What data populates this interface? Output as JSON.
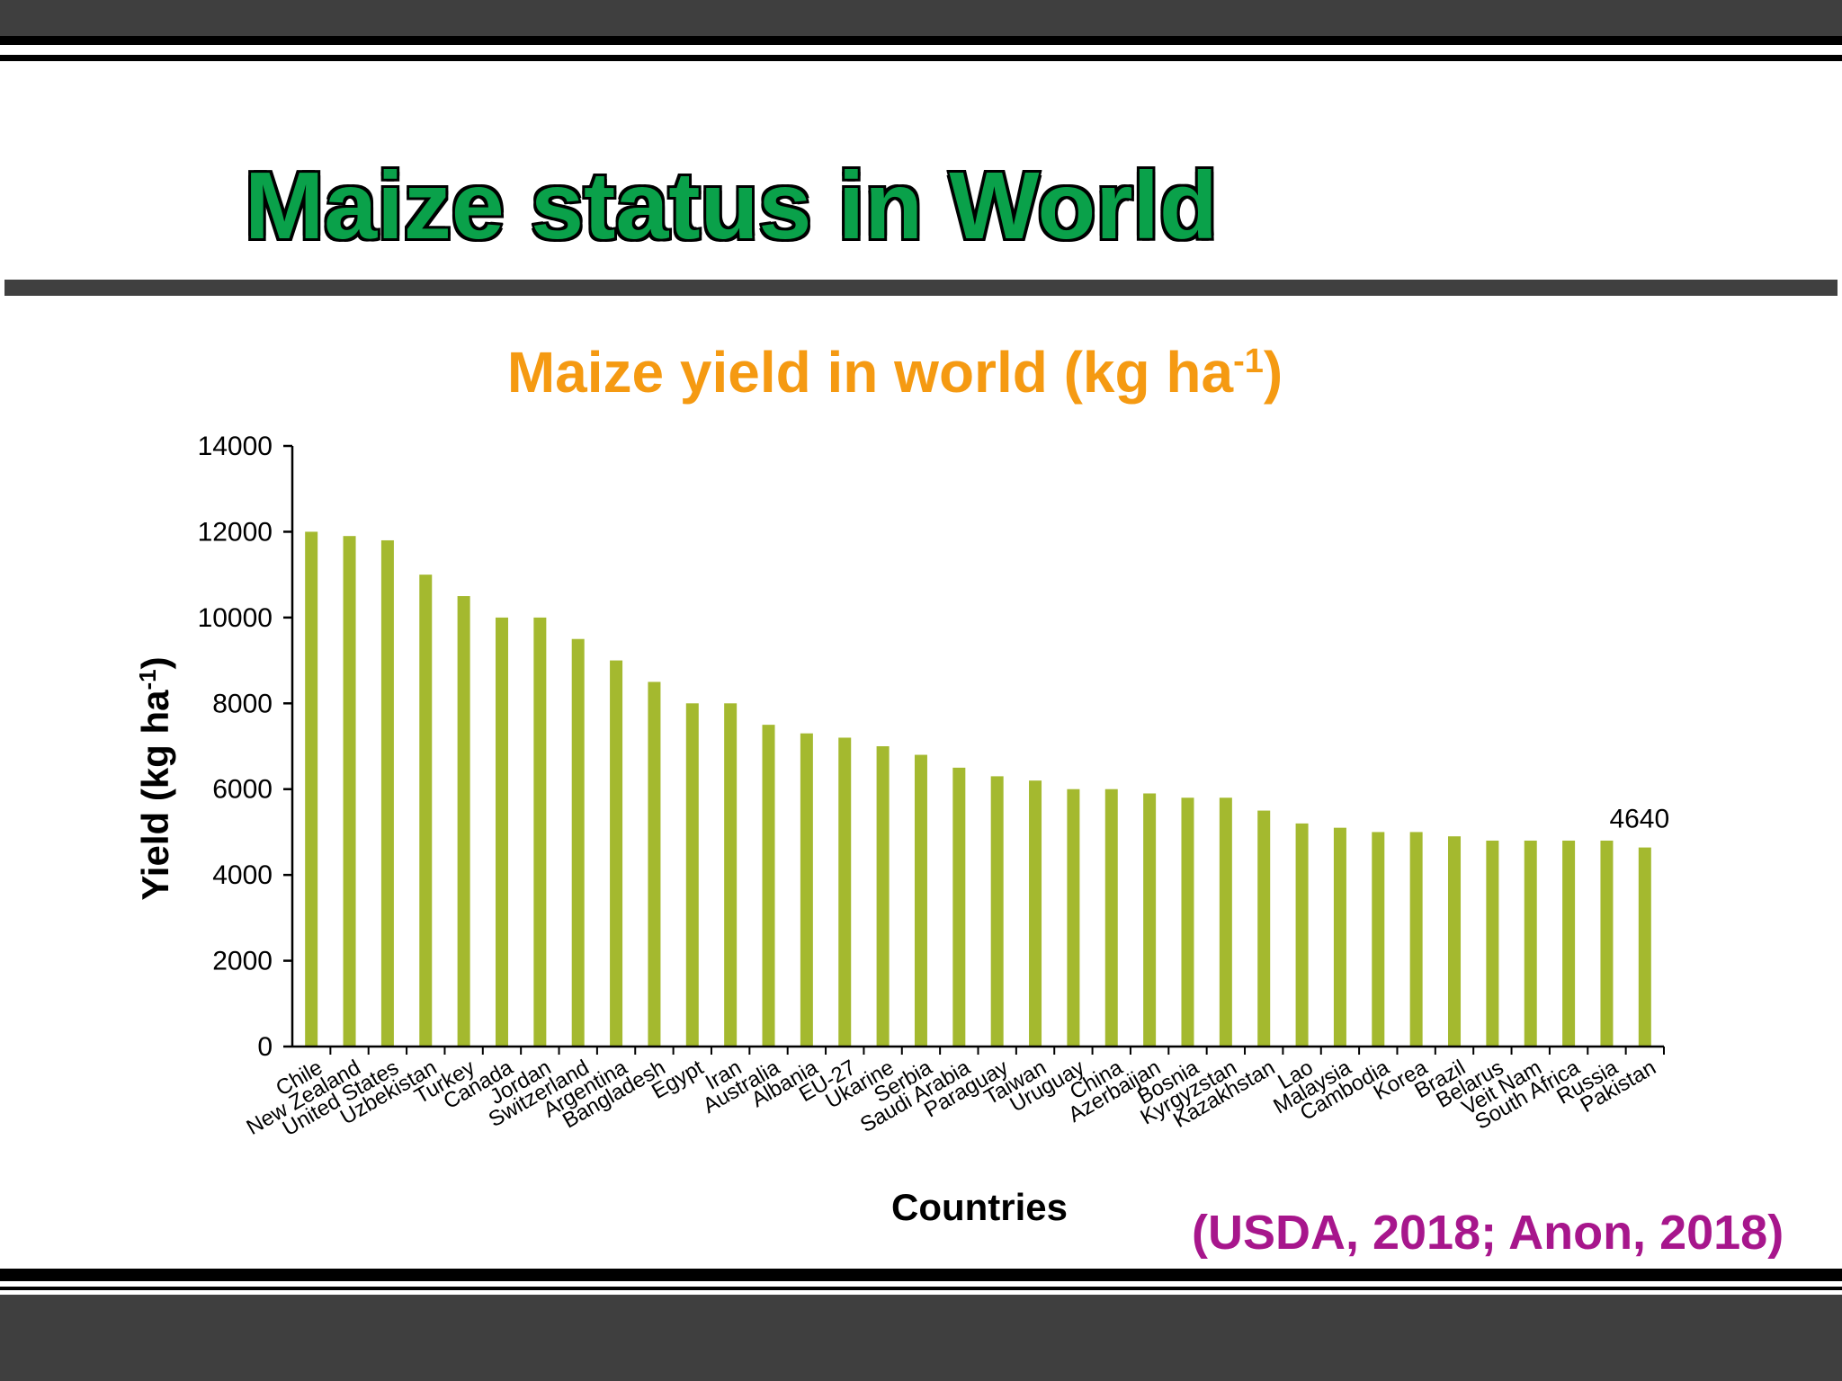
{
  "slide": {
    "title": "Maize status in World",
    "source": "(USDA, 2018; Anon, 2018)"
  },
  "colors": {
    "bar": "#a4b92f",
    "title_green": "#0aa14a",
    "chart_title_orange": "#f59a12",
    "source_purple": "#a7168c",
    "band_gray": "#3f3f3f"
  },
  "chart_data": {
    "type": "bar",
    "title": "Maize yield in world (kg ha",
    "title_superscript": "-1",
    "title_suffix": ")",
    "xlabel": "Countries",
    "ylabel": "Yield (kg ha",
    "ylabel_superscript": "-1",
    "ylabel_suffix": ")",
    "ylim": [
      0,
      14000
    ],
    "yticks": [
      0,
      2000,
      4000,
      6000,
      8000,
      10000,
      12000,
      14000
    ],
    "grid": false,
    "legend": "none",
    "categories": [
      "Chile",
      "New Zealand",
      "United States",
      "Uzbekistan",
      "Turkey",
      "Canada",
      "Jordan",
      "Switzerland",
      "Argentina",
      "Bangladesh",
      "Egypt",
      "Iran",
      "Australia",
      "Albania",
      "EU-27",
      "Ukarine",
      "Serbia",
      "Saudi Arabia",
      "Paraguay",
      "Taiwan",
      "Uruguay",
      "China",
      "Azerbaijan",
      "Bosnia",
      "Kyrgyzstan",
      "Kazakhstan",
      "Lao",
      "Malaysia",
      "Cambodia",
      "Korea",
      "Brazil",
      "Belarus",
      "Veit Nam",
      "South Africa",
      "Russia",
      "Pakistan"
    ],
    "values": [
      12000,
      11900,
      11800,
      11000,
      10500,
      10000,
      10000,
      9500,
      9000,
      8500,
      8000,
      8000,
      7500,
      7300,
      7200,
      7000,
      6800,
      6500,
      6300,
      6200,
      6000,
      6000,
      5900,
      5800,
      5800,
      5500,
      5200,
      5100,
      5000,
      5000,
      4900,
      4800,
      4800,
      4800,
      4800,
      4640
    ],
    "data_labels": [
      {
        "category": "Pakistan",
        "text": "4640"
      }
    ]
  }
}
